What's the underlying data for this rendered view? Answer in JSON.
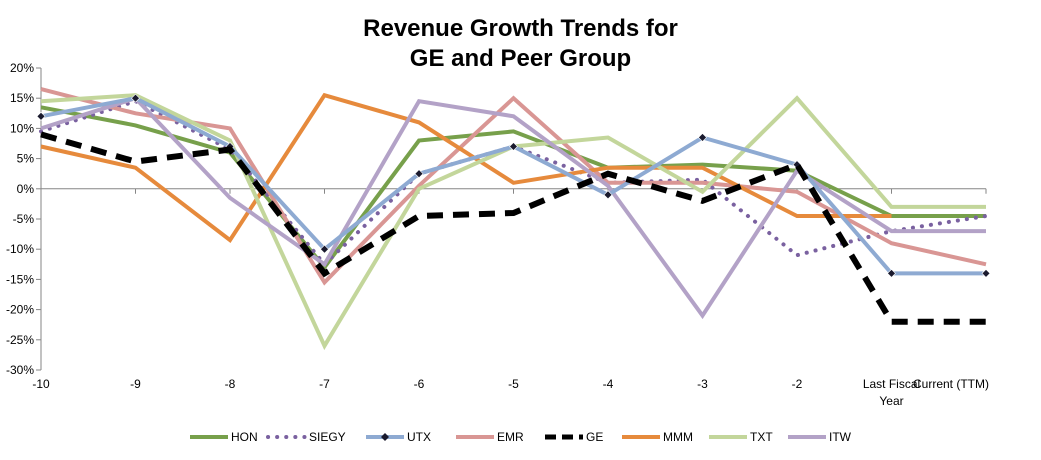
{
  "chart_data": {
    "type": "line",
    "title_lines": [
      "Revenue Growth Trends for",
      "GE and Peer Group"
    ],
    "categories": [
      "-10",
      "-9",
      "-8",
      "-7",
      "-6",
      "-5",
      "-4",
      "-3",
      "-2",
      "Last Fiscal Year",
      "Current (TTM)"
    ],
    "category_label_lines": [
      [
        "-10"
      ],
      [
        "-9"
      ],
      [
        "-8"
      ],
      [
        "-7"
      ],
      [
        "-6"
      ],
      [
        "-5"
      ],
      [
        "-4"
      ],
      [
        "-3"
      ],
      [
        "-2"
      ],
      [
        "Last Fiscal",
        "Year"
      ],
      [
        "Current (TTM)"
      ]
    ],
    "ylim": [
      -30,
      20
    ],
    "y_ticks": [
      20,
      15,
      10,
      5,
      0,
      -5,
      -10,
      -15,
      -20,
      -25,
      -30
    ],
    "y_tick_labels": [
      "20%",
      "15%",
      "10%",
      "5%",
      "0%",
      "-5%",
      "-10%",
      "-15%",
      "-20%",
      "-25%",
      "-30%"
    ],
    "grid": false,
    "legend_position": "bottom",
    "series": [
      {
        "name": "HON",
        "color": "#77a04b",
        "dash": "solid",
        "marker": "none",
        "values": [
          13.5,
          10.5,
          6.0,
          -13.0,
          8.0,
          9.5,
          3.5,
          4.0,
          3.0,
          -4.5,
          -4.5
        ]
      },
      {
        "name": "SIEGY",
        "color": "#7a61a0",
        "dash": "dot",
        "marker": "none",
        "values": [
          9.5,
          14.5,
          6.5,
          -12.5,
          2.5,
          7.0,
          1.0,
          1.5,
          -11.0,
          -7.0,
          -4.5
        ]
      },
      {
        "name": "UTX",
        "color": "#8eaad2",
        "dash": "solid",
        "marker": "diamond",
        "values": [
          12.0,
          15.0,
          7.0,
          -10.0,
          2.5,
          7.0,
          -1.0,
          8.5,
          4.0,
          -14.0,
          -14.0
        ]
      },
      {
        "name": "EMR",
        "color": "#d99694",
        "dash": "solid",
        "marker": "none",
        "values": [
          16.5,
          12.5,
          10.0,
          -15.5,
          0.5,
          15.0,
          1.0,
          1.0,
          -0.5,
          -9.0,
          -12.5
        ]
      },
      {
        "name": "GE",
        "color": "#000000",
        "dash": "dash",
        "marker": "none",
        "values": [
          9.0,
          4.5,
          6.5,
          -14.0,
          -4.5,
          -4.0,
          2.5,
          -2.0,
          4.0,
          -22.0,
          -22.0
        ]
      },
      {
        "name": "MMM",
        "color": "#e68a3c",
        "dash": "solid",
        "marker": "none",
        "values": [
          7.0,
          3.5,
          -8.5,
          15.5,
          11.0,
          1.0,
          3.5,
          3.5,
          -4.5,
          -4.5,
          null
        ]
      },
      {
        "name": "TXT",
        "color": "#c3d69b",
        "dash": "solid",
        "marker": "none",
        "values": [
          14.5,
          15.5,
          8.0,
          -26.0,
          0.0,
          7.0,
          8.5,
          -0.5,
          15.0,
          -3.0,
          -3.0
        ]
      },
      {
        "name": "ITW",
        "color": "#b3a2c7",
        "dash": "solid",
        "marker": "none",
        "values": [
          10.0,
          15.0,
          -1.5,
          -12.5,
          14.5,
          12.0,
          0.5,
          -21.0,
          3.0,
          -7.0,
          -7.0
        ]
      }
    ]
  }
}
